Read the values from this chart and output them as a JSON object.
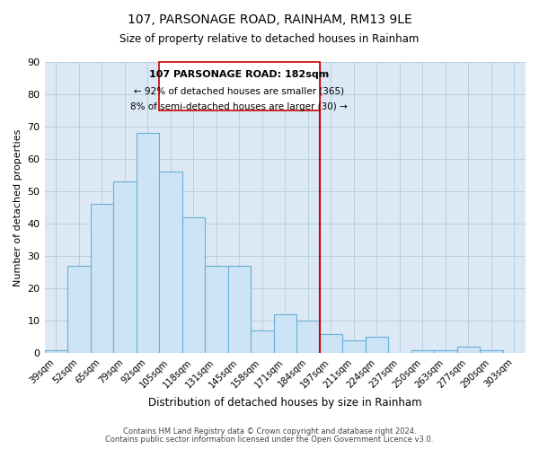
{
  "title": "107, PARSONAGE ROAD, RAINHAM, RM13 9LE",
  "subtitle": "Size of property relative to detached houses in Rainham",
  "xlabel": "Distribution of detached houses by size in Rainham",
  "ylabel": "Number of detached properties",
  "bar_labels": [
    "39sqm",
    "52sqm",
    "65sqm",
    "79sqm",
    "92sqm",
    "105sqm",
    "118sqm",
    "131sqm",
    "145sqm",
    "158sqm",
    "171sqm",
    "184sqm",
    "197sqm",
    "211sqm",
    "224sqm",
    "237sqm",
    "250sqm",
    "263sqm",
    "277sqm",
    "290sqm",
    "303sqm"
  ],
  "bar_values": [
    1,
    27,
    46,
    53,
    68,
    56,
    42,
    27,
    27,
    7,
    12,
    10,
    6,
    4,
    5,
    0,
    1,
    1,
    2,
    1,
    0
  ],
  "bar_color": "#cce4f5",
  "bar_edge_color": "#6baed6",
  "ylim": [
    0,
    90
  ],
  "yticks": [
    0,
    10,
    20,
    30,
    40,
    50,
    60,
    70,
    80,
    90
  ],
  "vline_x_index": 12,
  "vline_color": "#cc0000",
  "annotation_title": "107 PARSONAGE ROAD: 182sqm",
  "annotation_line1": "← 92% of detached houses are smaller (365)",
  "annotation_line2": "8% of semi-detached houses are larger (30) →",
  "footer1": "Contains HM Land Registry data © Crown copyright and database right 2024.",
  "footer2": "Contains public sector information licensed under the Open Government Licence v3.0.",
  "background_color": "#ffffff",
  "plot_bg_color": "#dce9f5",
  "grid_color": "#b8cfe0"
}
